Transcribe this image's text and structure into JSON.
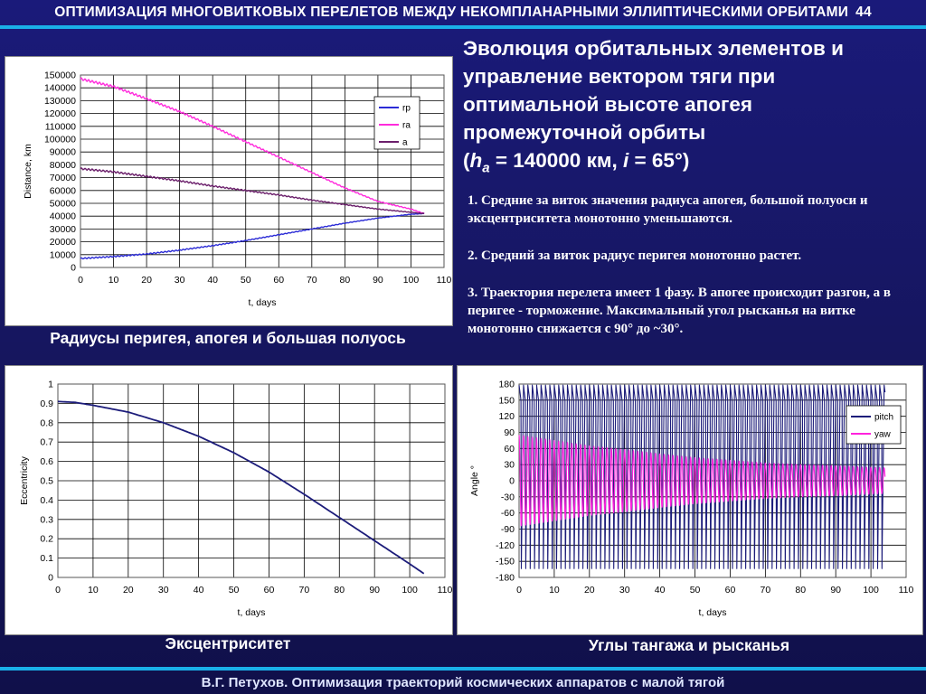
{
  "header": {
    "title": "ОПТИМИЗАЦИЯ МНОГОВИТКОВЫХ ПЕРЕЛЕТОВ МЕЖДУ НЕКОМПЛАНАРНЫМИ ЭЛЛИПТИЧЕСКИМИ ОРБИТАМИ",
    "page": "44"
  },
  "title": {
    "line1": "Эволюция орбитальных элементов и",
    "line2": "управление вектором тяги при",
    "line3": "оптимальной высоте апогея",
    "line4": "промежуточной орбиты",
    "paren_open": "(",
    "h_sym": "h",
    "h_sub": "a",
    "h_val": " = 140000 км, ",
    "i_sym": "i",
    "i_val": " = 65°)"
  },
  "notes": [
    "1. Средние за виток значения радиуса апогея, большой полуоси и эксцентриситета монотонно уменьшаются.",
    "2. Средний за виток радиус перигея монотонно растет.",
    "3. Траектория перелета имеет 1 фазу. В апогее происходит разгон, а в перигее - торможение. Максимальный угол рысканья на витке монотонно снижается с 90° до ~30°."
  ],
  "captions": {
    "radii": "Радиусы перигея, апогея и большая полуось",
    "ecc": "Эксцентриситет",
    "angles": "Углы тангажа и рысканья"
  },
  "footer": "В.Г. Петухов. Оптимизация траекторий космических аппаратов с малой тягой",
  "colors": {
    "rp": "#2b2bd6",
    "ra": "#ff2bdc",
    "a": "#6b1f6b",
    "ecc": "#1c1c7a",
    "pitch": "#1c1c7a",
    "yaw": "#ff22dd",
    "accent": "#1ab0e8"
  },
  "chart_data": [
    {
      "type": "line",
      "xlabel": "t, days",
      "ylabel": "Distance, km",
      "xlim": [
        0,
        110
      ],
      "ylim": [
        0,
        150000
      ],
      "xticks": [
        "0",
        "10",
        "20",
        "30",
        "40",
        "50",
        "60",
        "70",
        "80",
        "90",
        "100",
        "110"
      ],
      "yticks": [
        "0",
        "10000",
        "20000",
        "30000",
        "40000",
        "50000",
        "60000",
        "70000",
        "80000",
        "90000",
        "100000",
        "110000",
        "120000",
        "130000",
        "140000",
        "150000"
      ],
      "grid": true,
      "legend": "top-right",
      "series": [
        {
          "name": "rp",
          "x": [
            0,
            10,
            20,
            30,
            40,
            50,
            60,
            70,
            80,
            90,
            100,
            104
          ],
          "y": [
            7000,
            8500,
            10500,
            13500,
            17000,
            21000,
            25500,
            30000,
            34500,
            38500,
            41500,
            42000
          ]
        },
        {
          "name": "ra",
          "x": [
            0,
            10,
            20,
            30,
            40,
            50,
            60,
            70,
            80,
            90,
            100,
            104
          ],
          "y": [
            147000,
            141000,
            131500,
            121500,
            110000,
            98000,
            86000,
            74000,
            62000,
            51500,
            45500,
            42000
          ]
        },
        {
          "name": "a",
          "x": [
            0,
            10,
            20,
            30,
            40,
            50,
            60,
            70,
            80,
            90,
            100,
            104
          ],
          "y": [
            77000,
            74500,
            71000,
            67500,
            63500,
            60000,
            56500,
            52500,
            49000,
            45500,
            43000,
            42000
          ]
        }
      ]
    },
    {
      "type": "line",
      "xlabel": "t, days",
      "ylabel": "Eccentricity",
      "xlim": [
        0,
        110
      ],
      "ylim": [
        0,
        1
      ],
      "xticks": [
        "0",
        "10",
        "20",
        "30",
        "40",
        "50",
        "60",
        "70",
        "80",
        "90",
        "100",
        "110"
      ],
      "yticks": [
        "0",
        "0.1",
        "0.2",
        "0.3",
        "0.4",
        "0.5",
        "0.6",
        "0.7",
        "0.8",
        "0.9",
        "1"
      ],
      "grid": true,
      "series": [
        {
          "x": [
            0,
            5,
            10,
            20,
            30,
            40,
            50,
            60,
            70,
            80,
            90,
            100,
            104
          ],
          "y": [
            0.91,
            0.905,
            0.89,
            0.855,
            0.8,
            0.73,
            0.645,
            0.545,
            0.43,
            0.31,
            0.19,
            0.07,
            0.02
          ]
        }
      ]
    },
    {
      "type": "line",
      "xlabel": "t, days",
      "ylabel": "Angle °",
      "xlim": [
        0,
        110
      ],
      "ylim": [
        -180,
        180
      ],
      "xticks": [
        "0",
        "10",
        "20",
        "30",
        "40",
        "50",
        "60",
        "70",
        "80",
        "90",
        "100",
        "110"
      ],
      "yticks": [
        "-180",
        "-150",
        "-120",
        "-90",
        "-60",
        "-30",
        "0",
        "30",
        "60",
        "90",
        "120",
        "150",
        "180"
      ],
      "grid": true,
      "legend": "top-right",
      "series": [
        {
          "name": "pitch",
          "pattern": "oscillating",
          "range": [
            -180,
            180
          ],
          "x_end": 104
        },
        {
          "name": "yaw",
          "pattern": "oscillating",
          "x": [
            0,
            10,
            20,
            30,
            40,
            50,
            60,
            70,
            80,
            90,
            100,
            104
          ],
          "amplitude": [
            85,
            75,
            65,
            58,
            50,
            43,
            38,
            33,
            30,
            28,
            25,
            24
          ]
        }
      ]
    }
  ]
}
